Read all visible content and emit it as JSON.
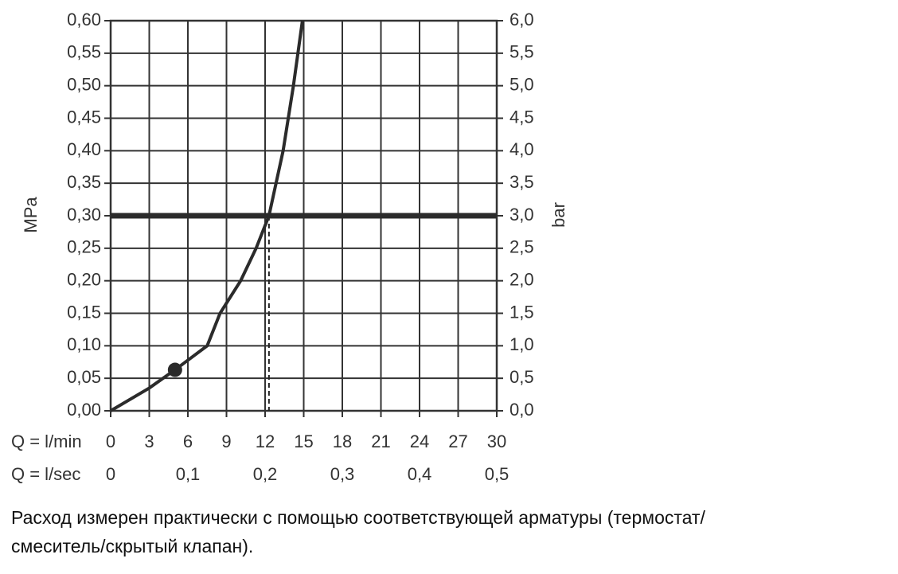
{
  "chart_data": {
    "type": "line",
    "x": [
      0,
      3,
      5,
      7.5,
      8.5,
      10.1,
      11.3,
      12.3,
      13.4,
      14.2,
      14.9
    ],
    "series": [
      {
        "color": "#2b2b2b",
        "values": [
          0,
          0.035,
          0.063,
          0.1,
          0.15,
          0.2,
          0.25,
          0.3,
          0.4,
          0.5,
          0.6
        ]
      }
    ],
    "xlabel": "Q = l/min",
    "xlim": [
      0,
      30
    ],
    "xticks": [
      0,
      3,
      6,
      9,
      12,
      15,
      18,
      21,
      24,
      27,
      30
    ],
    "x2label": "Q = l/sec",
    "x2lim": [
      0,
      0.5
    ],
    "x2ticks": [
      {
        "value": 0,
        "label": "0"
      },
      {
        "value": 0.1,
        "label": "0,1"
      },
      {
        "value": 0.2,
        "label": "0,2"
      },
      {
        "value": 0.3,
        "label": "0,3"
      },
      {
        "value": 0.4,
        "label": "0,4"
      },
      {
        "value": 0.5,
        "label": "0,5"
      }
    ],
    "ylabel": "MPa",
    "ylim": [
      0,
      0.6
    ],
    "yticks": [
      {
        "value": 0,
        "label": "0,00"
      },
      {
        "value": 0.05,
        "label": "0,05"
      },
      {
        "value": 0.1,
        "label": "0,10"
      },
      {
        "value": 0.15,
        "label": "0,15"
      },
      {
        "value": 0.2,
        "label": "0,20"
      },
      {
        "value": 0.25,
        "label": "0,25"
      },
      {
        "value": 0.3,
        "label": "0,30"
      },
      {
        "value": 0.35,
        "label": "0,35"
      },
      {
        "value": 0.4,
        "label": "0,40"
      },
      {
        "value": 0.45,
        "label": "0,45"
      },
      {
        "value": 0.5,
        "label": "0,50"
      },
      {
        "value": 0.55,
        "label": "0,55"
      },
      {
        "value": 0.6,
        "label": "0,60"
      }
    ],
    "y2label": "bar",
    "y2lim": [
      0,
      6
    ],
    "y2ticks": [
      {
        "value": 0,
        "label": "0,0"
      },
      {
        "value": 0.5,
        "label": "0,5"
      },
      {
        "value": 1,
        "label": "1,0"
      },
      {
        "value": 1.5,
        "label": "1,5"
      },
      {
        "value": 2,
        "label": "2,0"
      },
      {
        "value": 2.5,
        "label": "2,5"
      },
      {
        "value": 3,
        "label": "3,0"
      },
      {
        "value": 3.5,
        "label": "3,5"
      },
      {
        "value": 4,
        "label": "4,0"
      },
      {
        "value": 4.5,
        "label": "4,5"
      },
      {
        "value": 5,
        "label": "5,0"
      },
      {
        "value": 5.5,
        "label": "5,5"
      },
      {
        "value": 6,
        "label": "6,0"
      }
    ],
    "grid": true,
    "reference_line": {
      "y": 0.3
    },
    "intersection": {
      "x": 12.3,
      "y": 0.3
    },
    "marker": {
      "x": 5,
      "y": 0.063
    },
    "caption": [
      "Расход измерен практически с помощью соответствующей арматуры (термостат/",
      "смеситель/скрытый клапан)."
    ]
  }
}
